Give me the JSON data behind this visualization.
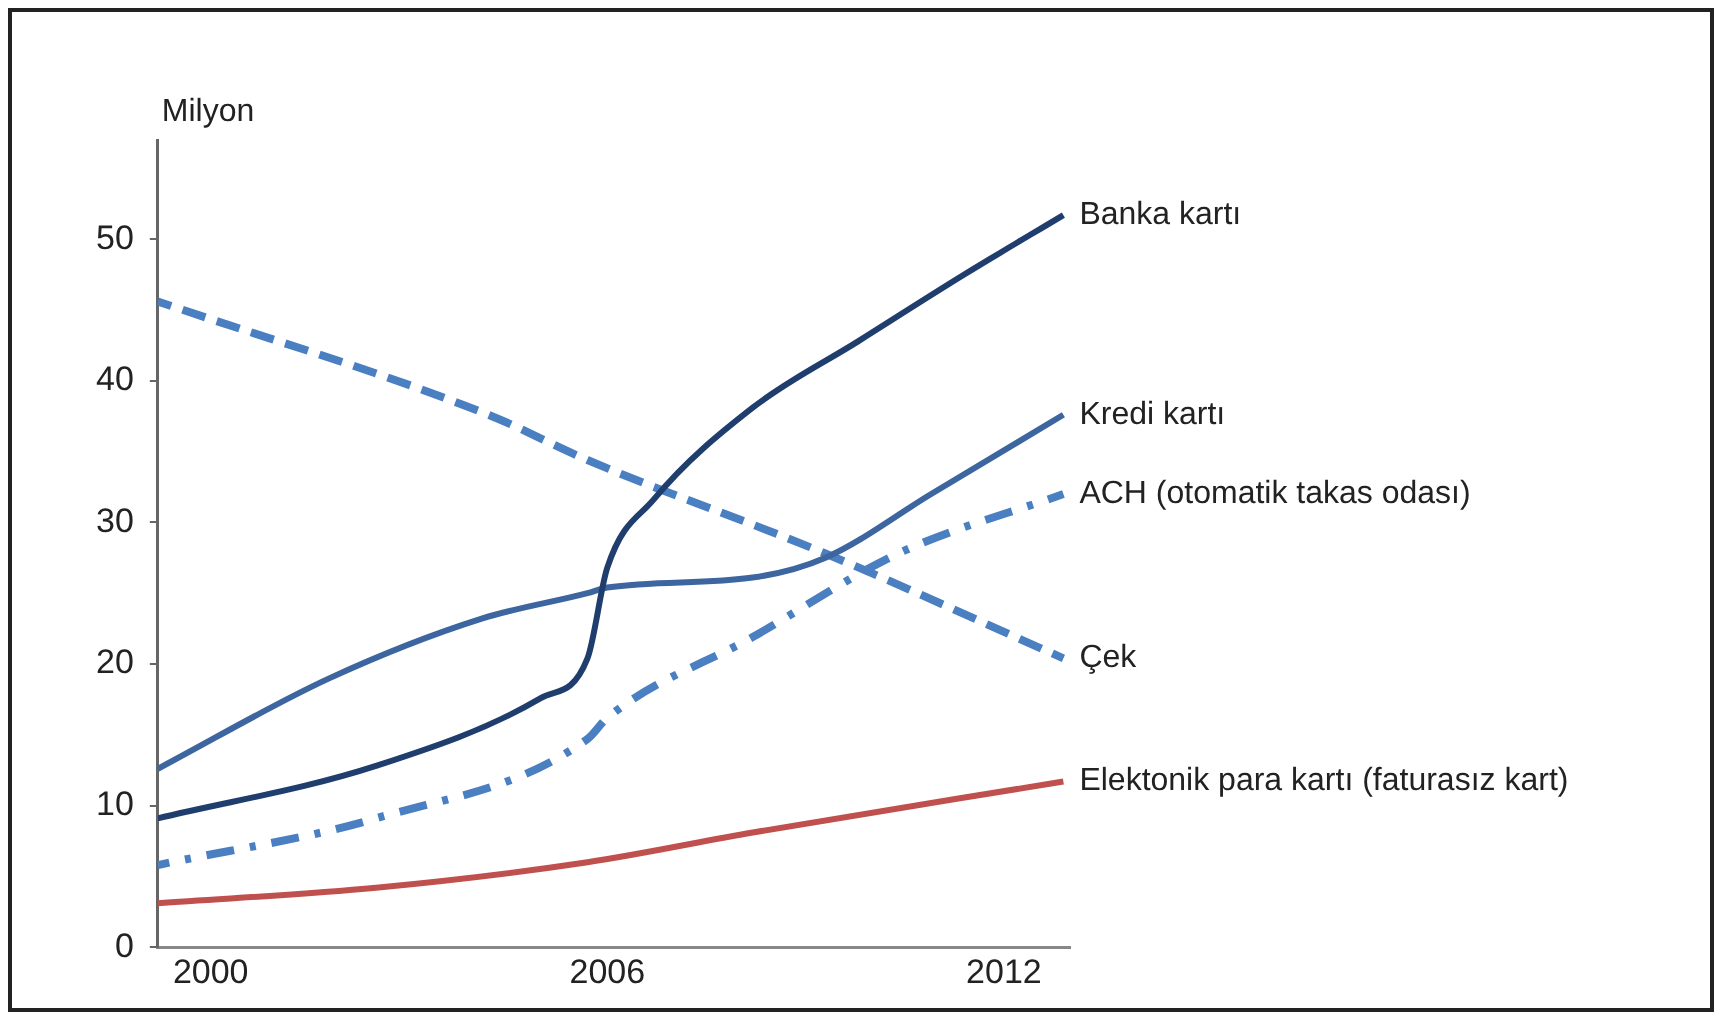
{
  "chart_data": {
    "type": "line",
    "ylabel": "Milyon",
    "xlim": [
      1999.2,
      2013
    ],
    "xticks": [
      2000,
      2006,
      2012
    ],
    "ylim": [
      0,
      57
    ],
    "yticks": [
      0,
      10,
      20,
      30,
      40,
      50
    ],
    "grid": false,
    "legend": false,
    "marker": "none",
    "series": [
      {
        "name": "Banka kartı",
        "color": "#1f3e6e",
        "line_style": "solid",
        "x": [
          1999.2,
          2002.5,
          2005,
          2005.7,
          2006,
          2006.7,
          2008.2,
          2009.8,
          2011.4,
          2012.9
        ],
        "values": [
          9.1,
          12.8,
          17.6,
          20.4,
          26.8,
          31.6,
          38.1,
          42.8,
          47.5,
          51.7
        ]
      },
      {
        "name": "Kredi kartı",
        "color": "#3d66a0",
        "line_style": "solid",
        "x": [
          1999.2,
          2001.8,
          2004.1,
          2005.7,
          2006,
          2008.2,
          2009.3,
          2010.9,
          2012.9
        ],
        "values": [
          12.6,
          19.0,
          23.2,
          25.0,
          25.4,
          26.1,
          27.5,
          32.0,
          37.6
        ]
      },
      {
        "name": "ACH (otomatik takas odası)",
        "color": "#4a7fc1",
        "line_style": "dashdot",
        "x": [
          1999.2,
          2002.5,
          2005.7,
          2006,
          2008.2,
          2010.4,
          2012.9
        ],
        "values": [
          5.8,
          9.1,
          14.7,
          16.2,
          21.9,
          27.8,
          32.0
        ]
      },
      {
        "name": "Çek",
        "color": "#4a7fc1",
        "line_style": "dashed",
        "x": [
          1999.2,
          2004.2,
          2005.7,
          2009.3,
          2012.9
        ],
        "values": [
          45.6,
          37.6,
          34.4,
          27.8,
          20.4
        ]
      },
      {
        "name": "Elektonik para kartı (faturasız kart)",
        "color": "#c0504d",
        "line_style": "solid",
        "x": [
          1999.2,
          2002.5,
          2005.7,
          2008.2,
          2012.9
        ],
        "values": [
          3.1,
          4.2,
          6.0,
          8.1,
          11.7
        ]
      }
    ]
  }
}
